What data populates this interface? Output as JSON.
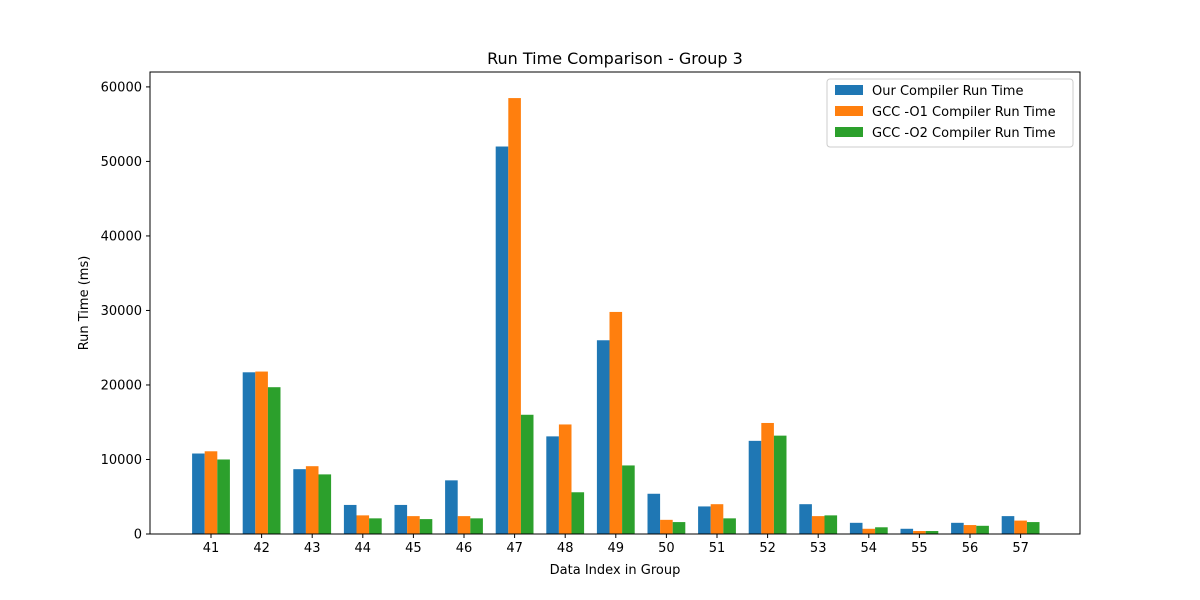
{
  "chart_data": {
    "type": "bar",
    "title": "Run Time Comparison - Group 3",
    "xlabel": "Data Index in Group",
    "ylabel": "Run Time (ms)",
    "ylim": [
      0,
      62000
    ],
    "yticks": [
      "0",
      "10000",
      "20000",
      "30000",
      "40000",
      "50000",
      "60000"
    ],
    "categories": [
      "41",
      "42",
      "43",
      "44",
      "45",
      "46",
      "47",
      "48",
      "49",
      "50",
      "51",
      "52",
      "53",
      "54",
      "55",
      "56",
      "57"
    ],
    "series": [
      {
        "name": "Our Compiler Run Time",
        "color": "#1f77b4",
        "values": [
          10800,
          21700,
          8700,
          3900,
          3900,
          7200,
          52000,
          13100,
          26000,
          5400,
          3700,
          12500,
          4000,
          1500,
          700,
          1500,
          2400
        ]
      },
      {
        "name": "GCC -O1 Compiler Run Time",
        "color": "#ff7f0e",
        "values": [
          11100,
          21800,
          9100,
          2500,
          2400,
          2400,
          58500,
          14700,
          29800,
          1900,
          4000,
          14900,
          2400,
          700,
          400,
          1200,
          1800
        ]
      },
      {
        "name": "GCC -O2 Compiler Run Time",
        "color": "#2ca02c",
        "values": [
          10000,
          19700,
          8000,
          2100,
          2000,
          2100,
          16000,
          5600,
          9200,
          1600,
          2100,
          13200,
          2500,
          900,
          400,
          1100,
          1600
        ]
      }
    ],
    "grid": false,
    "legend_position": "upper-right"
  }
}
